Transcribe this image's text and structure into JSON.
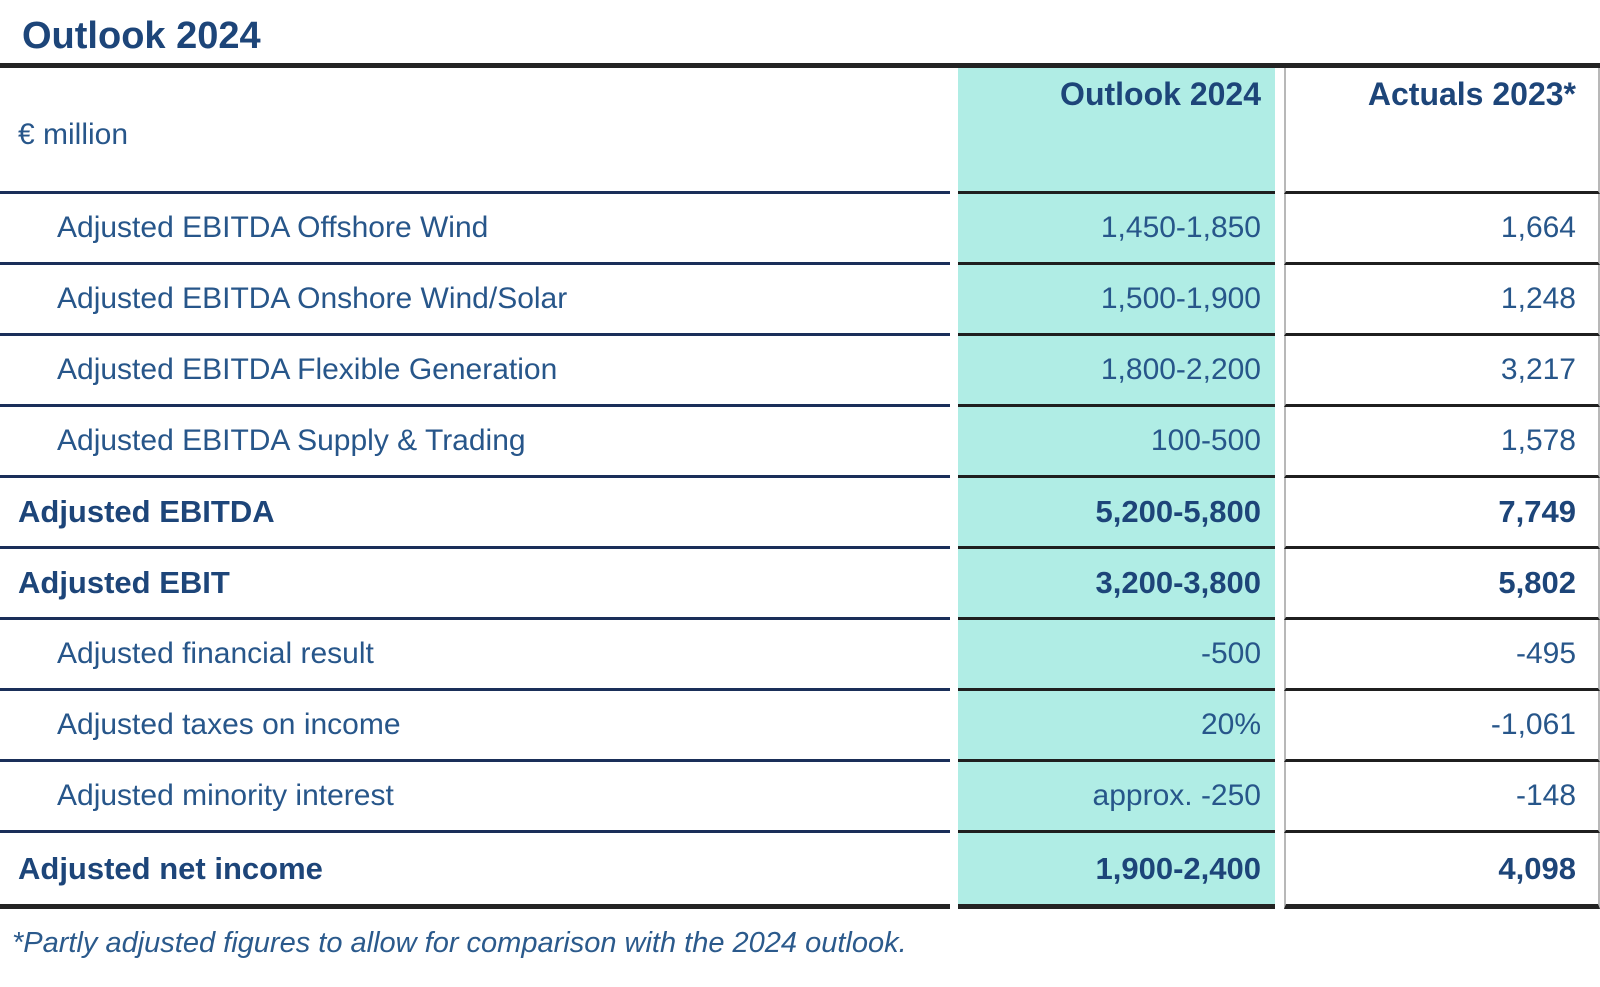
{
  "title": "Outlook 2024",
  "table": {
    "unit_label": "€ million",
    "columns": [
      {
        "key": "outlook",
        "label": "Outlook 2024",
        "highlight": true
      },
      {
        "key": "actuals",
        "label": "Actuals 2023*",
        "highlight": false
      }
    ],
    "rows": [
      {
        "label": "Adjusted EBITDA Offshore Wind",
        "outlook": "1,450-1,850",
        "actuals": "1,664",
        "emphasis": false
      },
      {
        "label": "Adjusted EBITDA Onshore Wind/Solar",
        "outlook": "1,500-1,900",
        "actuals": "1,248",
        "emphasis": false
      },
      {
        "label": "Adjusted EBITDA Flexible Generation",
        "outlook": "1,800-2,200",
        "actuals": "3,217",
        "emphasis": false
      },
      {
        "label": "Adjusted EBITDA Supply & Trading",
        "outlook": "100-500",
        "actuals": "1,578",
        "emphasis": false
      },
      {
        "label": "Adjusted EBITDA",
        "outlook": "5,200-5,800",
        "actuals": "7,749",
        "emphasis": true
      },
      {
        "label": "Adjusted EBIT",
        "outlook": "3,200-3,800",
        "actuals": "5,802",
        "emphasis": true
      },
      {
        "label": "Adjusted financial result",
        "outlook": "-500",
        "actuals": "-495",
        "emphasis": false
      },
      {
        "label": "Adjusted taxes on income",
        "outlook": "20%",
        "actuals": "-1,061",
        "emphasis": false
      },
      {
        "label": "Adjusted minority interest",
        "outlook": "approx. -250",
        "actuals": "-148",
        "emphasis": false
      },
      {
        "label": "Adjusted net income",
        "outlook": "1,900-2,400",
        "actuals": "4,098",
        "emphasis": true
      }
    ]
  },
  "footnote": "*Partly adjusted figures to allow for comparison with the 2024 outlook.",
  "colors": {
    "highlight_teal": "#b0ede5",
    "navy_text_bold": "#1d4579",
    "navy_text_regular": "#27568a",
    "navy_row_border": "#1a2f59",
    "black_border": "#232323",
    "gray_divider": "#b8b8b8"
  }
}
